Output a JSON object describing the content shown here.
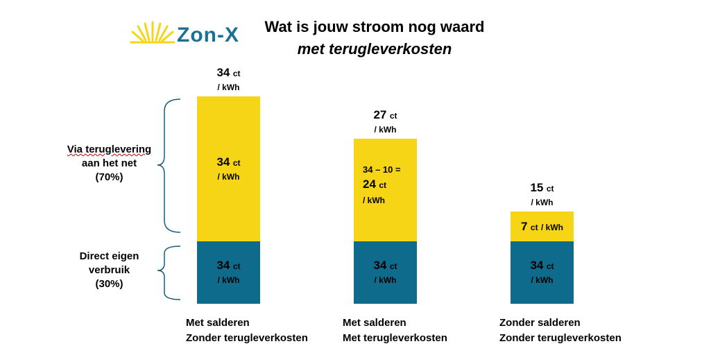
{
  "logo": {
    "text": "Zon-X",
    "brand_color": "#1a7190",
    "sun_color": "#F5D515"
  },
  "title_line1": "Wat is jouw stroom nog waard",
  "title_line2": "met terugleverkosten",
  "side_labels": {
    "top": [
      "Via teruglevering",
      "aan het net",
      "(70%)"
    ],
    "bottom": [
      "Direct eigen",
      "verbruik",
      "(30%)"
    ]
  },
  "colors": {
    "direct": "#0F6B8C",
    "net": "#F5D515"
  },
  "chart_data": {
    "type": "bar",
    "stacked": true,
    "categories": [
      [
        "Met salderen",
        "Zonder terugleverkosten"
      ],
      [
        "Met salderen",
        "Met terugleverkosten"
      ],
      [
        "Zonder salderen",
        "Zonder terugleverkosten"
      ]
    ],
    "weights": {
      "direct": 0.3,
      "net": 0.7
    },
    "direct_values": [
      34,
      34,
      34
    ],
    "net_values": [
      34,
      24,
      7
    ],
    "totals": [
      34,
      27,
      15
    ],
    "unit": "ct",
    "unit_suffix": "/ kWh",
    "net_label_prefix": [
      "",
      "34 – 10 =",
      ""
    ],
    "compact_net_label": [
      false,
      false,
      true
    ]
  }
}
